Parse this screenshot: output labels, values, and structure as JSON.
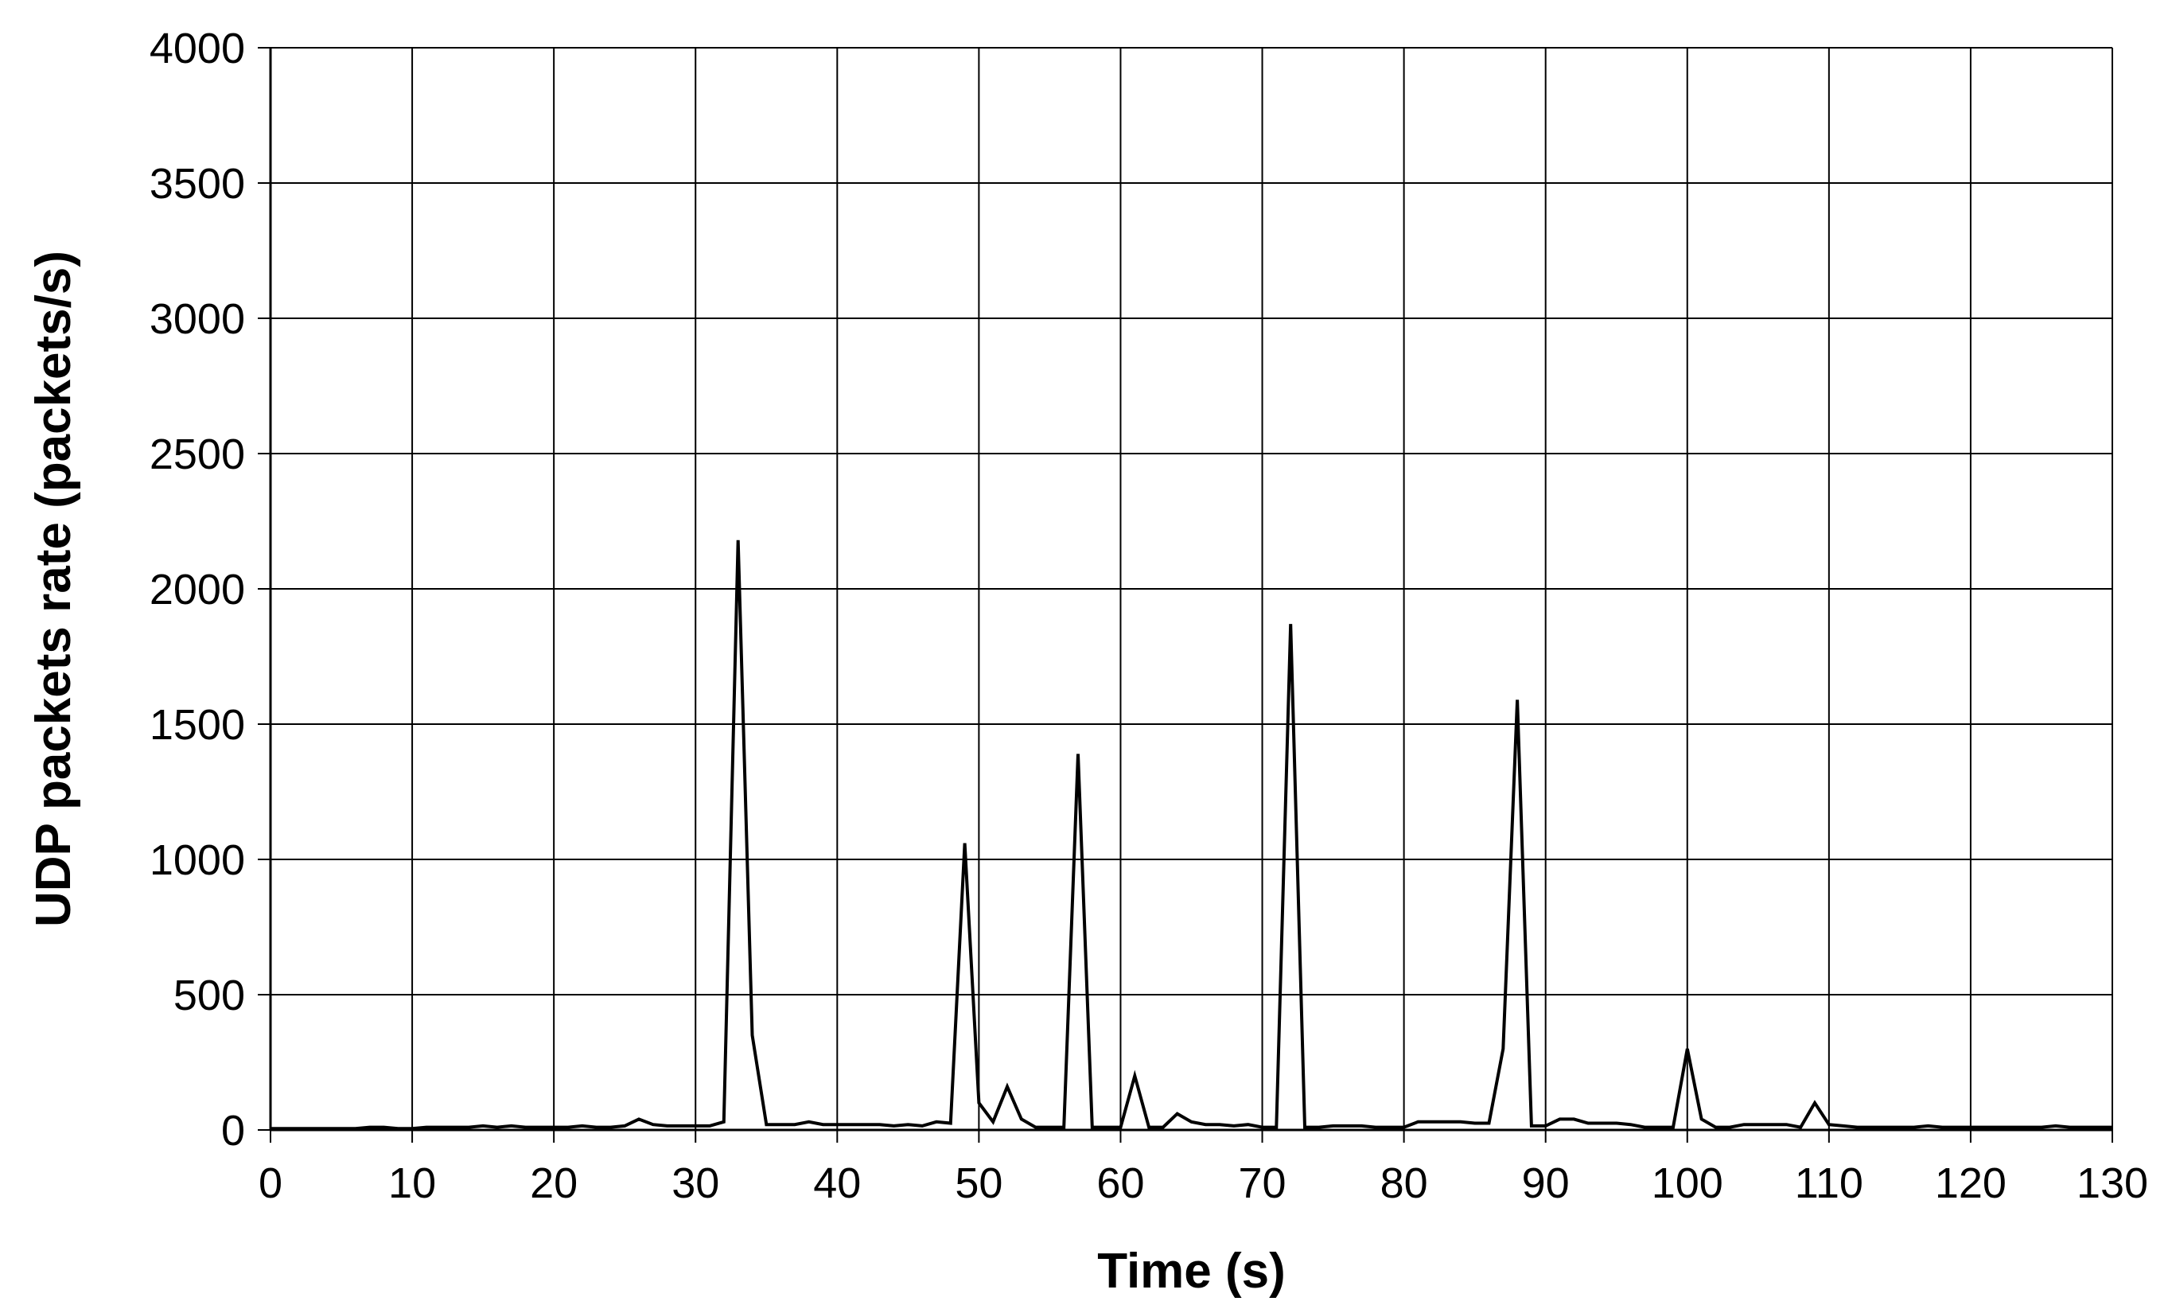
{
  "chart_data": {
    "type": "line",
    "title": "",
    "xlabel": "Time (s)",
    "ylabel": "UDP packets rate (packets/s)",
    "xlim": [
      0,
      130
    ],
    "ylim": [
      0,
      4000
    ],
    "x_ticks": [
      0,
      10,
      20,
      30,
      40,
      50,
      60,
      70,
      80,
      90,
      100,
      110,
      120,
      130
    ],
    "y_ticks": [
      0,
      500,
      1000,
      1500,
      2000,
      2500,
      3000,
      3500,
      4000
    ],
    "x_tick_labels": [
      "0",
      "10",
      "20",
      "30",
      "40",
      "50",
      "60",
      "70",
      "80",
      "90",
      "100",
      "110",
      "120",
      "130"
    ],
    "y_tick_labels": [
      "0",
      "500",
      "1000",
      "1500",
      "2000",
      "2500",
      "3000",
      "3500",
      "4000"
    ],
    "grid": true,
    "legend": "none",
    "line_color": "#000000",
    "series": [
      {
        "x": [
          0,
          1,
          2,
          3,
          4,
          5,
          6,
          7,
          8,
          9,
          10,
          11,
          12,
          13,
          14,
          15,
          16,
          17,
          18,
          19,
          20,
          21,
          22,
          23,
          24,
          25,
          26,
          27,
          28,
          29,
          30,
          31,
          32,
          33,
          34,
          35,
          36,
          37,
          38,
          39,
          40,
          41,
          42,
          43,
          44,
          45,
          46,
          47,
          48,
          49,
          50,
          51,
          52,
          53,
          54,
          55,
          56,
          57,
          58,
          59,
          60,
          61,
          62,
          63,
          64,
          65,
          66,
          67,
          68,
          69,
          70,
          71,
          72,
          73,
          74,
          75,
          76,
          77,
          78,
          79,
          80,
          81,
          82,
          83,
          84,
          85,
          86,
          87,
          88,
          89,
          90,
          91,
          92,
          93,
          94,
          95,
          96,
          97,
          98,
          99,
          100,
          101,
          102,
          103,
          104,
          105,
          106,
          107,
          108,
          109,
          110,
          111,
          112,
          113,
          114,
          115,
          116,
          117,
          118,
          119,
          120,
          121,
          122,
          123,
          124,
          125,
          126,
          127,
          128,
          129,
          130
        ],
        "values": [
          5,
          5,
          5,
          5,
          5,
          5,
          5,
          10,
          10,
          5,
          5,
          10,
          10,
          10,
          10,
          15,
          10,
          15,
          10,
          10,
          10,
          10,
          15,
          10,
          10,
          15,
          40,
          20,
          15,
          15,
          15,
          15,
          30,
          2180,
          350,
          20,
          20,
          20,
          30,
          20,
          20,
          20,
          20,
          20,
          15,
          20,
          15,
          30,
          25,
          1060,
          100,
          30,
          160,
          40,
          10,
          10,
          10,
          1390,
          10,
          10,
          10,
          200,
          10,
          10,
          60,
          30,
          20,
          20,
          15,
          20,
          10,
          10,
          1870,
          10,
          10,
          15,
          15,
          15,
          10,
          10,
          10,
          30,
          30,
          30,
          30,
          25,
          25,
          300,
          1590,
          15,
          15,
          40,
          40,
          25,
          25,
          25,
          20,
          10,
          10,
          10,
          300,
          40,
          10,
          10,
          20,
          20,
          20,
          20,
          10,
          100,
          20,
          15,
          10,
          10,
          10,
          10,
          10,
          15,
          10,
          10,
          10,
          10,
          10,
          10,
          10,
          10,
          15,
          10,
          10,
          10,
          10
        ]
      }
    ]
  }
}
